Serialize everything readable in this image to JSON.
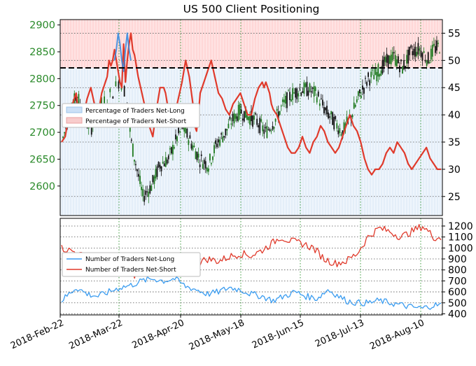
{
  "chart_data": [
    {
      "type": "line",
      "title": "US 500 Client Positioning",
      "x_tick_labels": [
        "2018-Feb-22",
        "2018-Mar-22",
        "2018-Apr-20",
        "2018-May-18",
        "2018-Jun-15",
        "2018-Jul-13",
        "2018-Aug-10"
      ],
      "y_left_ticks": [
        2600,
        2650,
        2700,
        2750,
        2800,
        2850,
        2900
      ],
      "y_left_range": [
        2545,
        2910
      ],
      "y_right_ticks": [
        25,
        30,
        35,
        40,
        45,
        50,
        55
      ],
      "y_right_range": [
        21.5,
        57.5
      ],
      "reference_line": 2820,
      "legend_position": "upper-left",
      "grid": true,
      "series": [
        {
          "name": "Percentage of Traders Net-Long",
          "color": "#2f88e0",
          "values": [
            [
              0,
              30
            ],
            [
              6,
              38
            ],
            [
              12,
              40
            ],
            [
              18,
              42
            ],
            [
              24,
              44
            ],
            [
              28,
              46
            ],
            [
              30,
              50
            ],
            [
              32,
              52
            ],
            [
              33,
              54
            ],
            [
              34,
              55
            ],
            [
              35,
              47
            ],
            [
              36,
              50
            ],
            [
              37,
              53
            ],
            [
              38,
              55
            ],
            [
              40,
              52
            ],
            [
              42,
              50
            ],
            [
              44,
              46
            ],
            [
              46,
              44
            ],
            [
              48,
              40
            ],
            [
              52,
              38
            ],
            [
              56,
              36
            ],
            [
              60,
              34
            ],
            [
              64,
              32
            ],
            [
              68,
              28
            ],
            [
              72,
              27
            ],
            [
              76,
              30
            ]
          ]
        },
        {
          "name": "Percentage of Traders Net-Short",
          "color": "#e03a2b",
          "values": [
            [
              0,
              35
            ],
            [
              2,
              36
            ],
            [
              4,
              40
            ],
            [
              6,
              42
            ],
            [
              8,
              44
            ],
            [
              10,
              38
            ],
            [
              12,
              40
            ],
            [
              14,
              43
            ],
            [
              16,
              45
            ],
            [
              18,
              42
            ],
            [
              20,
              40
            ],
            [
              22,
              44
            ],
            [
              24,
              46
            ],
            [
              25,
              47
            ],
            [
              26,
              50
            ],
            [
              27,
              49
            ],
            [
              28,
              50
            ],
            [
              29,
              52
            ],
            [
              30,
              50
            ],
            [
              31,
              48
            ],
            [
              32,
              46
            ],
            [
              33,
              45
            ],
            [
              34,
              53
            ],
            [
              35,
              46
            ],
            [
              36,
              50
            ],
            [
              37,
              53
            ],
            [
              38,
              55
            ],
            [
              39,
              52
            ],
            [
              40,
              51
            ],
            [
              42,
              47
            ],
            [
              44,
              44
            ],
            [
              46,
              41
            ],
            [
              48,
              38
            ],
            [
              50,
              36
            ],
            [
              52,
              41
            ],
            [
              54,
              45
            ],
            [
              56,
              45
            ],
            [
              57,
              44
            ],
            [
              58,
              42
            ],
            [
              59,
              40
            ],
            [
              60,
              38
            ],
            [
              62,
              40
            ],
            [
              64,
              43
            ],
            [
              66,
              46
            ],
            [
              67,
              48
            ],
            [
              68,
              50
            ],
            [
              70,
              47
            ],
            [
              72,
              42
            ],
            [
              73,
              38
            ],
            [
              74,
              37
            ],
            [
              75,
              40
            ],
            [
              76,
              44
            ],
            [
              78,
              46
            ],
            [
              80,
              48
            ],
            [
              82,
              50
            ],
            [
              84,
              47
            ],
            [
              86,
              44
            ],
            [
              88,
              43
            ],
            [
              90,
              41
            ],
            [
              92,
              40
            ],
            [
              94,
              42
            ],
            [
              96,
              43
            ],
            [
              98,
              44
            ],
            [
              100,
              42
            ],
            [
              102,
              40
            ],
            [
              104,
              40
            ],
            [
              106,
              43
            ],
            [
              108,
              45
            ],
            [
              110,
              46
            ],
            [
              111,
              45
            ],
            [
              112,
              46
            ],
            [
              113,
              45
            ],
            [
              114,
              44
            ],
            [
              115,
              42
            ],
            [
              116,
              41
            ],
            [
              118,
              40
            ],
            [
              120,
              38
            ],
            [
              122,
              36
            ],
            [
              124,
              34
            ],
            [
              126,
              33
            ],
            [
              128,
              33
            ],
            [
              130,
              34
            ],
            [
              132,
              36
            ],
            [
              134,
              34
            ],
            [
              136,
              33
            ],
            [
              138,
              35
            ],
            [
              140,
              36
            ],
            [
              142,
              38
            ],
            [
              144,
              37
            ],
            [
              146,
              35
            ],
            [
              148,
              34
            ],
            [
              150,
              33
            ],
            [
              152,
              34
            ],
            [
              154,
              36
            ],
            [
              156,
              38
            ],
            [
              158,
              40
            ],
            [
              160,
              38
            ],
            [
              162,
              37
            ],
            [
              164,
              35
            ],
            [
              166,
              32
            ],
            [
              168,
              30
            ],
            [
              170,
              29
            ],
            [
              172,
              30
            ],
            [
              174,
              30
            ],
            [
              176,
              31
            ],
            [
              178,
              33
            ],
            [
              180,
              34
            ],
            [
              182,
              33
            ],
            [
              184,
              35
            ],
            [
              186,
              34
            ],
            [
              188,
              33
            ],
            [
              190,
              31
            ],
            [
              192,
              30
            ],
            [
              194,
              31
            ],
            [
              196,
              32
            ],
            [
              198,
              33
            ],
            [
              200,
              34
            ],
            [
              202,
              32
            ],
            [
              204,
              31
            ],
            [
              206,
              30
            ],
            [
              208,
              30
            ]
          ]
        }
      ]
    },
    {
      "type": "line",
      "y_ticks": [
        400,
        500,
        600,
        700,
        800,
        900,
        1000,
        1100,
        1200
      ],
      "y_range": [
        390,
        1270
      ],
      "legend_position": "upper-left",
      "grid": true,
      "series": [
        {
          "name": "Number of Traders Net-Long",
          "color": "#3a9cf0",
          "values": []
        },
        {
          "name": "Number of Traders Net-Short",
          "color": "#e03a2b",
          "values": []
        }
      ]
    }
  ]
}
